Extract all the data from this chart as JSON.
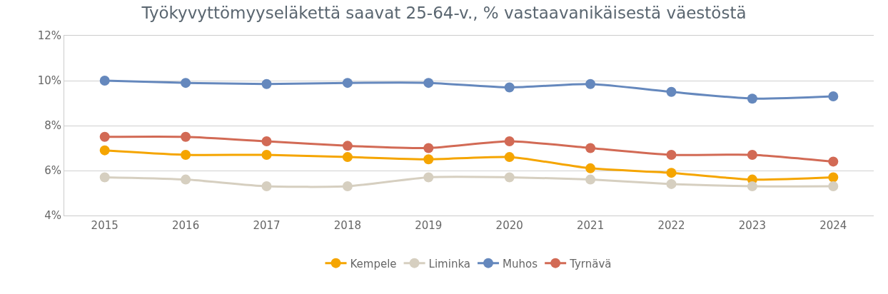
{
  "chart_data": {
    "type": "line",
    "title": "Työkyvyttömyyseläkettä saavat 25-64-v., % vastaavanikäisestä väestöstä",
    "categories": [
      "2015",
      "2016",
      "2017",
      "2018",
      "2019",
      "2020",
      "2021",
      "2022",
      "2023",
      "2024"
    ],
    "series": [
      {
        "name": "Kempele",
        "color": "#f5a500",
        "values": [
          6.9,
          6.7,
          6.7,
          6.6,
          6.5,
          6.6,
          6.1,
          5.9,
          5.6,
          5.7
        ]
      },
      {
        "name": "Liminka",
        "color": "#d6cfc0",
        "values": [
          5.7,
          5.6,
          5.3,
          5.3,
          5.7,
          5.7,
          5.6,
          5.4,
          5.3,
          5.3
        ]
      },
      {
        "name": "Muhos",
        "color": "#6588bd",
        "values": [
          10.0,
          9.9,
          9.85,
          9.9,
          9.9,
          9.7,
          9.85,
          9.5,
          9.2,
          9.3
        ]
      },
      {
        "name": "Tyrnävä",
        "color": "#d26a55",
        "values": [
          7.5,
          7.5,
          7.3,
          7.1,
          7.0,
          7.3,
          7.0,
          6.7,
          6.7,
          6.4
        ]
      }
    ],
    "ylim": [
      4,
      12
    ],
    "yticks": [
      {
        "value": 4,
        "label": "4%"
      },
      {
        "value": 6,
        "label": "6%"
      },
      {
        "value": 8,
        "label": "8%"
      },
      {
        "value": 10,
        "label": "10%"
      },
      {
        "value": 12,
        "label": "12%"
      }
    ],
    "grid": "y",
    "legend": "bottom",
    "marker": "circle",
    "line_style": "solid"
  }
}
